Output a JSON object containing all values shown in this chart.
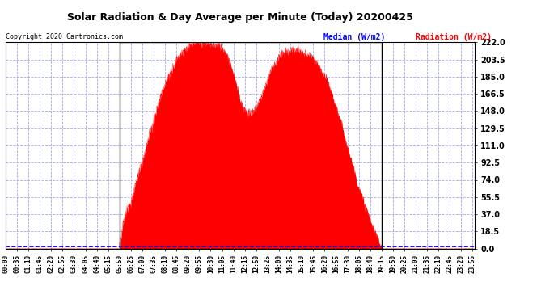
{
  "title": "Solar Radiation & Day Average per Minute (Today) 20200425",
  "copyright": "Copyright 2020 Cartronics.com",
  "legend_median": "Median (W/m2)",
  "legend_radiation": "Radiation (W/m2)",
  "yticks": [
    0.0,
    18.5,
    37.0,
    55.5,
    74.0,
    92.5,
    111.0,
    129.5,
    148.0,
    166.5,
    185.0,
    203.5,
    222.0
  ],
  "ymin": 0.0,
  "ymax": 222.0,
  "start_hour": 0.0,
  "end_hour": 24.0,
  "sunrise": 5.833,
  "sunset": 19.25,
  "median_value": 2.0,
  "background_color": "#ffffff",
  "fill_color": "#ff0000",
  "grid_color": "#aaaaee",
  "median_color": "#0000ff",
  "title_color": "#000000",
  "copyright_color": "#000000",
  "legend_median_color": "#0000ff",
  "legend_radiation_color": "#ff0000",
  "xtick_interval_min": 35
}
